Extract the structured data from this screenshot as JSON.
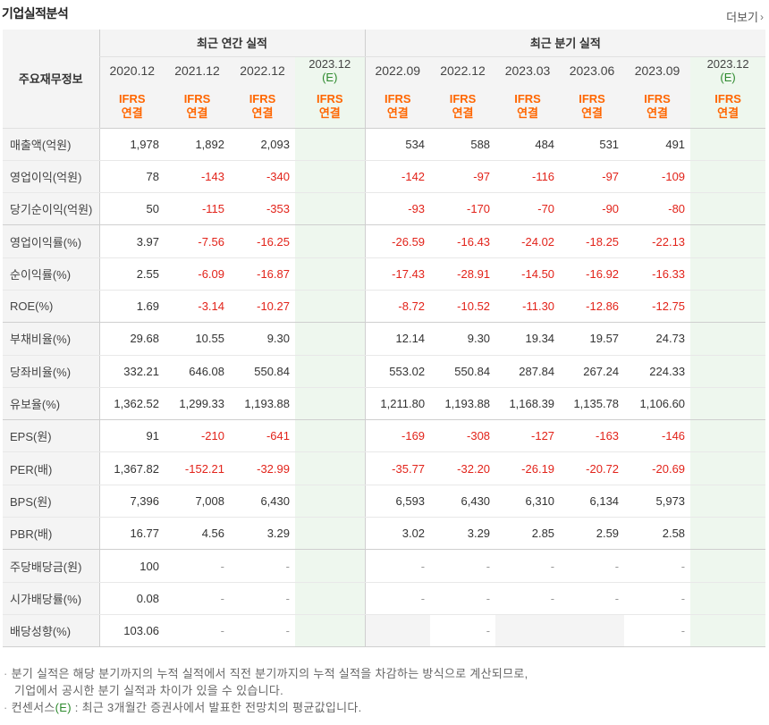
{
  "header": {
    "title": "기업실적분석",
    "more_label": "더보기"
  },
  "table": {
    "corner_label": "주요재무정보",
    "group_annual": "최근 연간 실적",
    "group_quarter": "최근 분기 실적",
    "annual_periods": [
      {
        "label": "2020.12",
        "estimate": false
      },
      {
        "label": "2021.12",
        "estimate": false
      },
      {
        "label": "2022.12",
        "estimate": false
      },
      {
        "label": "2023.12",
        "estimate": true,
        "estimate_mark": "(E)"
      }
    ],
    "quarter_periods": [
      {
        "label": "2022.09",
        "estimate": false
      },
      {
        "label": "2022.12",
        "estimate": false
      },
      {
        "label": "2023.03",
        "estimate": false
      },
      {
        "label": "2023.06",
        "estimate": false
      },
      {
        "label": "2023.09",
        "estimate": false
      },
      {
        "label": "2023.12",
        "estimate": true,
        "estimate_mark": "(E)"
      }
    ],
    "basis_line1": "IFRS",
    "basis_line2": "연결",
    "rows": [
      {
        "label": "매출액(억원)",
        "annual": [
          "1,978",
          "1,892",
          "2,093",
          ""
        ],
        "quarter": [
          "534",
          "588",
          "484",
          "531",
          "491",
          ""
        ]
      },
      {
        "label": "영업이익(억원)",
        "annual": [
          "78",
          "-143",
          "-340",
          ""
        ],
        "quarter": [
          "-142",
          "-97",
          "-116",
          "-97",
          "-109",
          ""
        ]
      },
      {
        "label": "당기순이익(억원)",
        "annual": [
          "50",
          "-115",
          "-353",
          ""
        ],
        "quarter": [
          "-93",
          "-170",
          "-70",
          "-90",
          "-80",
          ""
        ]
      },
      {
        "label": "영업이익률(%)",
        "annual": [
          "3.97",
          "-7.56",
          "-16.25",
          ""
        ],
        "quarter": [
          "-26.59",
          "-16.43",
          "-24.02",
          "-18.25",
          "-22.13",
          ""
        ]
      },
      {
        "label": "순이익률(%)",
        "annual": [
          "2.55",
          "-6.09",
          "-16.87",
          ""
        ],
        "quarter": [
          "-17.43",
          "-28.91",
          "-14.50",
          "-16.92",
          "-16.33",
          ""
        ]
      },
      {
        "label": "ROE(%)",
        "annual": [
          "1.69",
          "-3.14",
          "-10.27",
          ""
        ],
        "quarter": [
          "-8.72",
          "-10.52",
          "-11.30",
          "-12.86",
          "-12.75",
          ""
        ]
      },
      {
        "label": "부채비율(%)",
        "annual": [
          "29.68",
          "10.55",
          "9.30",
          ""
        ],
        "quarter": [
          "12.14",
          "9.30",
          "19.34",
          "19.57",
          "24.73",
          ""
        ]
      },
      {
        "label": "당좌비율(%)",
        "annual": [
          "332.21",
          "646.08",
          "550.84",
          ""
        ],
        "quarter": [
          "553.02",
          "550.84",
          "287.84",
          "267.24",
          "224.33",
          ""
        ]
      },
      {
        "label": "유보율(%)",
        "annual": [
          "1,362.52",
          "1,299.33",
          "1,193.88",
          ""
        ],
        "quarter": [
          "1,211.80",
          "1,193.88",
          "1,168.39",
          "1,135.78",
          "1,106.60",
          ""
        ]
      },
      {
        "label": "EPS(원)",
        "annual": [
          "91",
          "-210",
          "-641",
          ""
        ],
        "quarter": [
          "-169",
          "-308",
          "-127",
          "-163",
          "-146",
          ""
        ]
      },
      {
        "label": "PER(배)",
        "annual": [
          "1,367.82",
          "-152.21",
          "-32.99",
          ""
        ],
        "quarter": [
          "-35.77",
          "-32.20",
          "-26.19",
          "-20.72",
          "-20.69",
          ""
        ]
      },
      {
        "label": "BPS(원)",
        "annual": [
          "7,396",
          "7,008",
          "6,430",
          ""
        ],
        "quarter": [
          "6,593",
          "6,430",
          "6,310",
          "6,134",
          "5,973",
          ""
        ]
      },
      {
        "label": "PBR(배)",
        "annual": [
          "16.77",
          "4.56",
          "3.29",
          ""
        ],
        "quarter": [
          "3.02",
          "3.29",
          "2.85",
          "2.59",
          "2.58",
          ""
        ]
      },
      {
        "label": "주당배당금(원)",
        "annual": [
          "100",
          "-",
          "-",
          ""
        ],
        "quarter": [
          "-",
          "-",
          "-",
          "-",
          "-",
          ""
        ]
      },
      {
        "label": "시가배당률(%)",
        "annual": [
          "0.08",
          "-",
          "-",
          ""
        ],
        "quarter": [
          "-",
          "-",
          "-",
          "-",
          "-",
          ""
        ]
      },
      {
        "label": "배당성향(%)",
        "annual": [
          "103.06",
          "-",
          "-",
          ""
        ],
        "quarter": [
          null,
          "-",
          null,
          null,
          "-",
          ""
        ]
      }
    ]
  },
  "notes": {
    "line1": "분기 실적은 해당 분기까지의 누적 실적에서 직전 분기까지의 누적 실적을 차감하는 방식으로 계산되므로,",
    "line2": "기업에서 공시한 분기 실적과 차이가 있을 수 있습니다.",
    "line3_prefix": "컨센서스",
    "line3_mark": "(E)",
    "line3_rest": " : 최근 3개월간 증권사에서 발표한 전망치의 평균값입니다."
  }
}
